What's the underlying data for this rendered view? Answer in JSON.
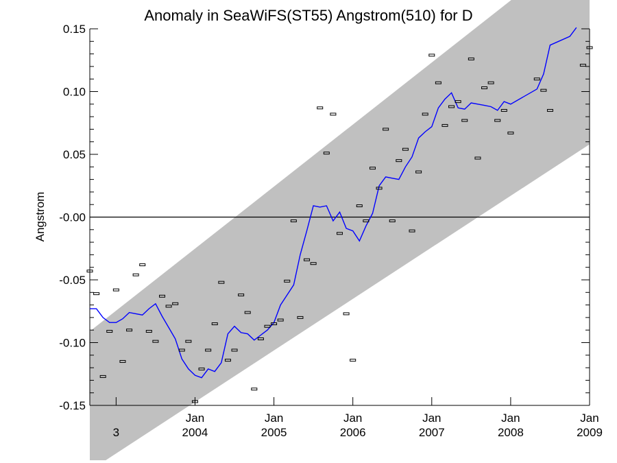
{
  "chart_data": {
    "type": "line",
    "title": "Anomaly in SeaWiFS(ST55) Angstrom(510) for D",
    "xlabel": "",
    "ylabel": "Angstrom",
    "xlim": [
      "2002-09",
      "2009-01"
    ],
    "ylim": [
      -0.15,
      0.15
    ],
    "y_ticks": [
      "0.15",
      "0.10",
      "0.05",
      "-0.00",
      "-0.05",
      "-0.10",
      "-0.15"
    ],
    "x_ticks": [
      {
        "date": "2003-01",
        "line1": "",
        "line2": "3"
      },
      {
        "date": "2004-01",
        "line1": "Jan",
        "line2": "2004"
      },
      {
        "date": "2005-01",
        "line1": "Jan",
        "line2": "2005"
      },
      {
        "date": "2006-01",
        "line1": "Jan",
        "line2": "2006"
      },
      {
        "date": "2007-01",
        "line1": "Jan",
        "line2": "2007"
      },
      {
        "date": "2008-01",
        "line1": "Jan",
        "line2": "2008"
      },
      {
        "date": "2009-01",
        "line1": "Jan",
        "line2": "2009"
      }
    ],
    "zero_line": 0,
    "band": {
      "color": "#c0c0c0",
      "upper": [
        [
          "2002-09",
          -0.091
        ],
        [
          "2009-01",
          0.222
        ]
      ],
      "lower": [
        [
          "2002-09",
          -0.202
        ],
        [
          "2009-01",
          0.058
        ]
      ]
    },
    "series": [
      {
        "kind": "monthly-anomaly-points",
        "color": "#000000",
        "points": [
          [
            "2002-09",
            -0.043
          ],
          [
            "2002-10",
            -0.061
          ],
          [
            "2002-11",
            -0.127
          ],
          [
            "2002-12",
            -0.091
          ],
          [
            "2003-01",
            -0.058
          ],
          [
            "2003-02",
            -0.115
          ],
          [
            "2003-03",
            -0.09
          ],
          [
            "2003-04",
            -0.046
          ],
          [
            "2003-05",
            -0.038
          ],
          [
            "2003-06",
            -0.091
          ],
          [
            "2003-07",
            -0.099
          ],
          [
            "2003-08",
            -0.063
          ],
          [
            "2003-09",
            -0.071
          ],
          [
            "2003-10",
            -0.069
          ],
          [
            "2003-11",
            -0.106
          ],
          [
            "2003-12",
            -0.099
          ],
          [
            "2004-01",
            -0.147
          ],
          [
            "2004-02",
            -0.121
          ],
          [
            "2004-03",
            -0.106
          ],
          [
            "2004-04",
            -0.085
          ],
          [
            "2004-05",
            -0.052
          ],
          [
            "2004-06",
            -0.114
          ],
          [
            "2004-07",
            -0.106
          ],
          [
            "2004-08",
            -0.062
          ],
          [
            "2004-09",
            -0.076
          ],
          [
            "2004-10",
            -0.137
          ],
          [
            "2004-11",
            -0.097
          ],
          [
            "2004-12",
            -0.087
          ],
          [
            "2005-01",
            -0.085
          ],
          [
            "2005-02",
            -0.082
          ],
          [
            "2005-03",
            -0.051
          ],
          [
            "2005-04",
            -0.003
          ],
          [
            "2005-05",
            -0.08
          ],
          [
            "2005-06",
            -0.034
          ],
          [
            "2005-07",
            -0.037
          ],
          [
            "2005-08",
            0.087
          ],
          [
            "2005-09",
            0.051
          ],
          [
            "2005-10",
            0.082
          ],
          [
            "2005-11",
            -0.013
          ],
          [
            "2005-12",
            -0.077
          ],
          [
            "2006-01",
            -0.114
          ],
          [
            "2006-02",
            0.009
          ],
          [
            "2006-03",
            -0.003
          ],
          [
            "2006-04",
            0.039
          ],
          [
            "2006-05",
            0.023
          ],
          [
            "2006-06",
            0.07
          ],
          [
            "2006-07",
            -0.003
          ],
          [
            "2006-08",
            0.045
          ],
          [
            "2006-09",
            0.054
          ],
          [
            "2006-10",
            -0.011
          ],
          [
            "2006-11",
            0.036
          ],
          [
            "2006-12",
            0.082
          ],
          [
            "2007-01",
            0.129
          ],
          [
            "2007-02",
            0.107
          ],
          [
            "2007-03",
            0.073
          ],
          [
            "2007-04",
            0.088
          ],
          [
            "2007-05",
            0.092
          ],
          [
            "2007-06",
            0.077
          ],
          [
            "2007-07",
            0.126
          ],
          [
            "2007-08",
            0.047
          ],
          [
            "2007-09",
            0.103
          ],
          [
            "2007-10",
            0.107
          ],
          [
            "2007-11",
            0.077
          ],
          [
            "2007-12",
            0.085
          ],
          [
            "2008-01",
            0.067
          ],
          [
            "2008-05",
            0.11
          ],
          [
            "2008-06",
            0.101
          ],
          [
            "2008-07",
            0.085
          ],
          [
            "2008-12",
            0.121
          ],
          [
            "2009-01",
            0.135
          ]
        ]
      },
      {
        "kind": "running-mean",
        "color": "#0000ff",
        "points": [
          [
            "2002-09",
            -0.073
          ],
          [
            "2002-10",
            -0.073
          ],
          [
            "2002-11",
            -0.08
          ],
          [
            "2002-12",
            -0.084
          ],
          [
            "2003-01",
            -0.084
          ],
          [
            "2003-02",
            -0.081
          ],
          [
            "2003-03",
            -0.076
          ],
          [
            "2003-04",
            -0.077
          ],
          [
            "2003-05",
            -0.078
          ],
          [
            "2003-06",
            -0.073
          ],
          [
            "2003-07",
            -0.069
          ],
          [
            "2003-08",
            -0.079
          ],
          [
            "2003-09",
            -0.088
          ],
          [
            "2003-10",
            -0.097
          ],
          [
            "2003-11",
            -0.113
          ],
          [
            "2003-12",
            -0.121
          ],
          [
            "2004-01",
            -0.126
          ],
          [
            "2004-02",
            -0.128
          ],
          [
            "2004-03",
            -0.121
          ],
          [
            "2004-04",
            -0.123
          ],
          [
            "2004-05",
            -0.116
          ],
          [
            "2004-06",
            -0.093
          ],
          [
            "2004-07",
            -0.087
          ],
          [
            "2004-08",
            -0.092
          ],
          [
            "2004-09",
            -0.093
          ],
          [
            "2004-10",
            -0.098
          ],
          [
            "2004-11",
            -0.094
          ],
          [
            "2004-12",
            -0.09
          ],
          [
            "2005-01",
            -0.084
          ],
          [
            "2005-02",
            -0.07
          ],
          [
            "2005-03",
            -0.062
          ],
          [
            "2005-04",
            -0.054
          ],
          [
            "2005-05",
            -0.03
          ],
          [
            "2005-06",
            -0.011
          ],
          [
            "2005-07",
            0.009
          ],
          [
            "2005-08",
            0.008
          ],
          [
            "2005-09",
            0.009
          ],
          [
            "2005-10",
            -0.003
          ],
          [
            "2005-11",
            0.004
          ],
          [
            "2005-12",
            -0.009
          ],
          [
            "2006-01",
            -0.011
          ],
          [
            "2006-02",
            -0.019
          ],
          [
            "2006-03",
            -0.007
          ],
          [
            "2006-04",
            0.003
          ],
          [
            "2006-05",
            0.025
          ],
          [
            "2006-06",
            0.032
          ],
          [
            "2006-07",
            0.031
          ],
          [
            "2006-08",
            0.03
          ],
          [
            "2006-09",
            0.04
          ],
          [
            "2006-10",
            0.048
          ],
          [
            "2006-11",
            0.063
          ],
          [
            "2006-12",
            0.068
          ],
          [
            "2007-01",
            0.072
          ],
          [
            "2007-02",
            0.087
          ],
          [
            "2007-03",
            0.094
          ],
          [
            "2007-04",
            0.099
          ],
          [
            "2007-05",
            0.087
          ],
          [
            "2007-06",
            0.086
          ],
          [
            "2007-07",
            0.091
          ],
          [
            "2007-08",
            0.09
          ],
          [
            "2007-09",
            0.089
          ],
          [
            "2007-10",
            0.088
          ],
          [
            "2007-11",
            0.085
          ],
          [
            "2007-12",
            0.092
          ],
          [
            "2008-01",
            0.09
          ],
          [
            "2008-05",
            0.102
          ],
          [
            "2008-06",
            0.114
          ],
          [
            "2008-07",
            0.137
          ],
          [
            "2008-10",
            0.144
          ],
          [
            "2008-11",
            0.151
          ]
        ]
      }
    ]
  }
}
